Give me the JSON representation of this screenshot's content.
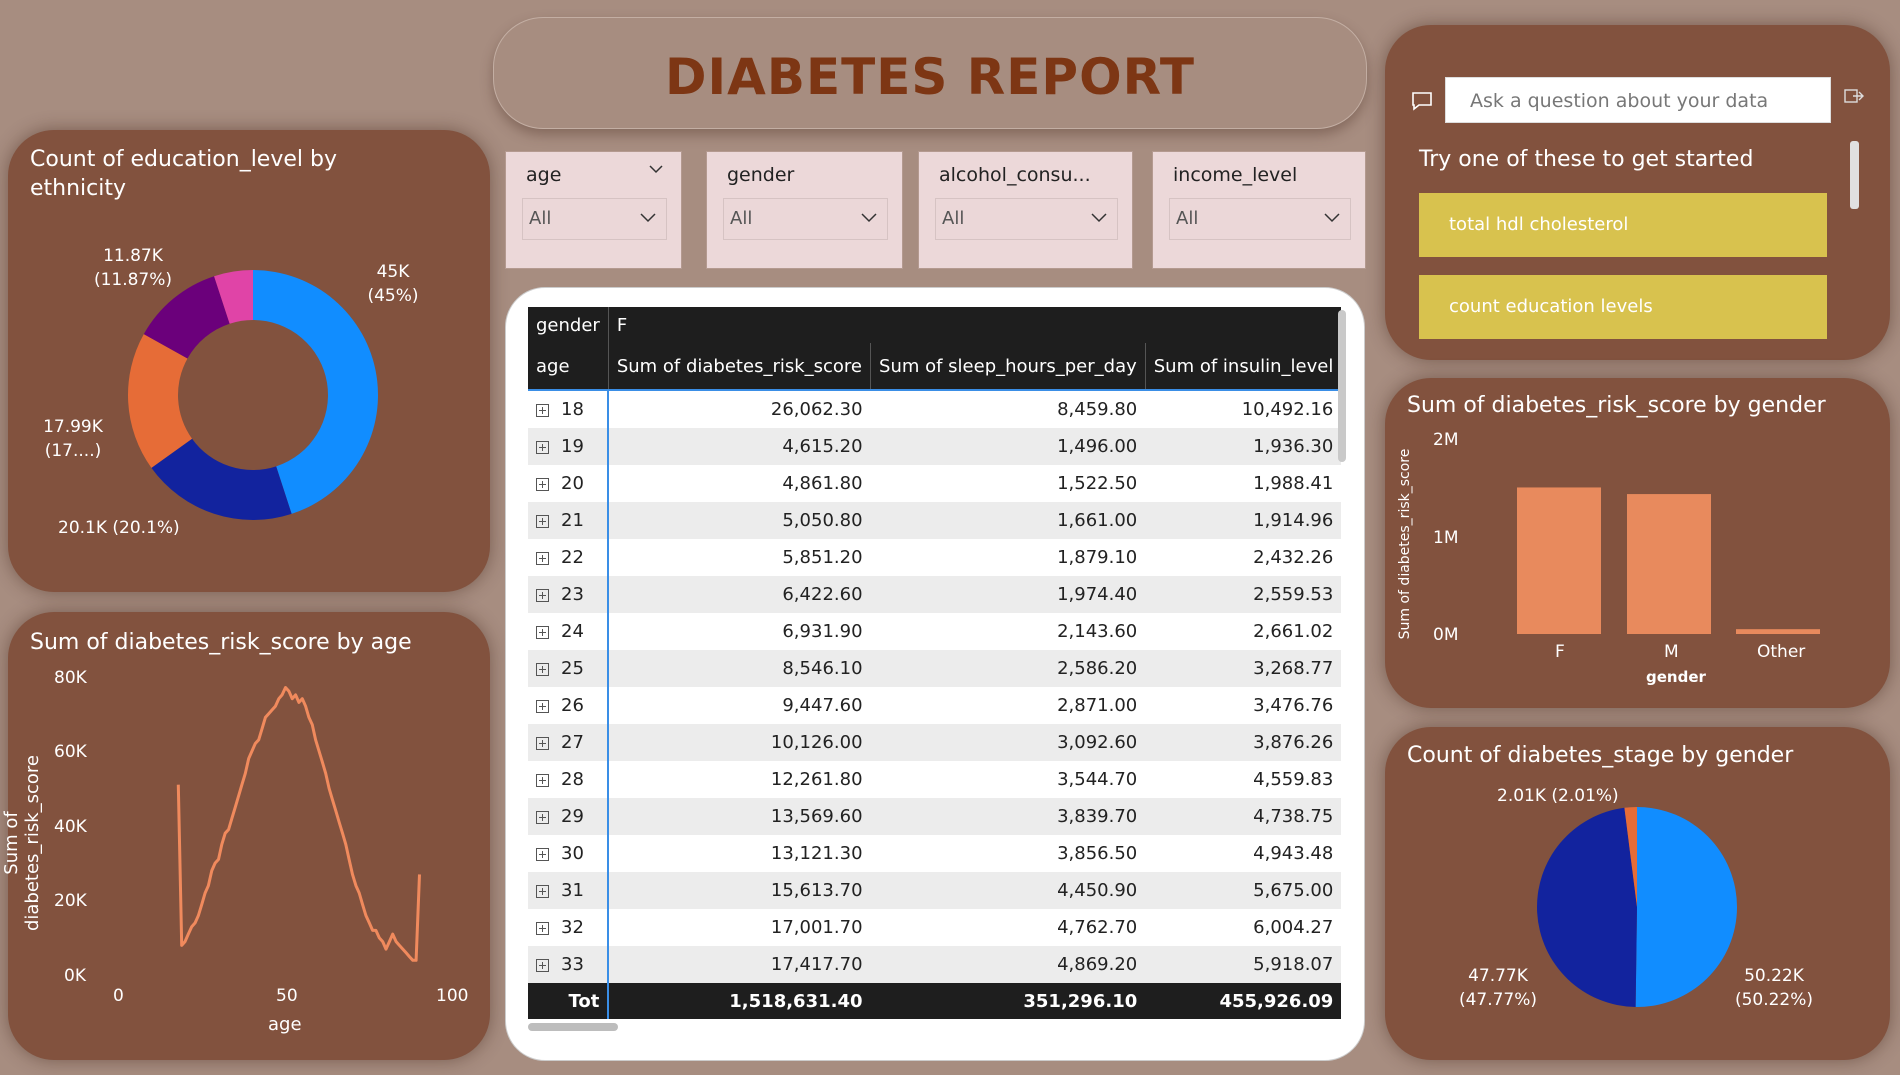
{
  "header": {
    "title": "DIABETES REPORT"
  },
  "slicers": [
    {
      "title": "age",
      "value": "All"
    },
    {
      "title": "gender",
      "value": "All"
    },
    {
      "title": "alcohol_consu...",
      "value": "All"
    },
    {
      "title": "income_level",
      "value": "All"
    }
  ],
  "donut": {
    "title": "Count of education_level by ethnicity",
    "labels": [
      "45K (45%)",
      "20.1K (20.1%)",
      "17.99K (17....)",
      "11.87K (11.87%)"
    ],
    "label_lines": {
      "a1": "45K",
      "a2": "(45%)",
      "b1": "20.1K (20.1%)",
      "c1": "17.99K",
      "c2": "(17....)",
      "d1": "11.87K",
      "d2": "(11.87%)"
    }
  },
  "line": {
    "title": "Sum of diabetes_risk_score by age",
    "ylabel": "Sum of diabetes_risk_score",
    "xlabel": "age",
    "yticks": [
      "80K",
      "60K",
      "40K",
      "20K",
      "0K"
    ],
    "xticks": [
      "0",
      "50",
      "100"
    ]
  },
  "qa": {
    "placeholder": "Ask a question about your data",
    "prompt": "Try one of these to get started",
    "suggestions": [
      "total hdl cholesterol",
      "count education levels"
    ]
  },
  "bar": {
    "title": "Sum of diabetes_risk_score by gender",
    "ylabel": "Sum of diabetes_risk_score",
    "xlabel": "gender",
    "yticks": [
      "2M",
      "1M",
      "0M"
    ],
    "categories": [
      "F",
      "M",
      "Other"
    ]
  },
  "pie": {
    "title": "Count of diabetes_stage by gender",
    "label_top": "2.01K (2.01%)",
    "label_left1": "47.77K",
    "label_left2": "(47.77%)",
    "label_right1": "50.22K",
    "label_right2": "(50.22%)"
  },
  "table": {
    "header_gender": "gender",
    "header_gender_val": "F",
    "columns": [
      "age",
      "Sum of diabetes_risk_score",
      "Sum of sleep_hours_per_day",
      "Sum of insulin_level"
    ],
    "rows": [
      [
        "18",
        "26,062.30",
        "8,459.80",
        "10,492.16"
      ],
      [
        "19",
        "4,615.20",
        "1,496.00",
        "1,936.30"
      ],
      [
        "20",
        "4,861.80",
        "1,522.50",
        "1,988.41"
      ],
      [
        "21",
        "5,050.80",
        "1,661.00",
        "1,914.96"
      ],
      [
        "22",
        "5,851.20",
        "1,879.10",
        "2,432.26"
      ],
      [
        "23",
        "6,422.60",
        "1,974.40",
        "2,559.53"
      ],
      [
        "24",
        "6,931.90",
        "2,143.60",
        "2,661.02"
      ],
      [
        "25",
        "8,546.10",
        "2,586.20",
        "3,268.77"
      ],
      [
        "26",
        "9,447.60",
        "2,871.00",
        "3,476.76"
      ],
      [
        "27",
        "10,126.00",
        "3,092.60",
        "3,876.26"
      ],
      [
        "28",
        "12,261.80",
        "3,544.70",
        "4,559.83"
      ],
      [
        "29",
        "13,569.60",
        "3,839.70",
        "4,738.75"
      ],
      [
        "30",
        "13,121.30",
        "3,856.50",
        "4,943.48"
      ],
      [
        "31",
        "15,613.70",
        "4,450.90",
        "5,675.00"
      ],
      [
        "32",
        "17,001.70",
        "4,762.70",
        "6,004.27"
      ],
      [
        "33",
        "17,417.70",
        "4,869.20",
        "5,918.07"
      ]
    ],
    "total": [
      "Tot",
      "1,518,631.40",
      "351,296.10",
      "455,926.09"
    ]
  },
  "chart_data": [
    {
      "type": "pie",
      "title": "Count of education_level by ethnicity",
      "values": [
        45000,
        20100,
        17990,
        11870,
        5040
      ],
      "colors": [
        "#118dff",
        "#12239e",
        "#e66c37",
        "#6b007b",
        "#e044a7"
      ]
    },
    {
      "type": "line",
      "title": "Sum of diabetes_risk_score by age",
      "xlabel": "age",
      "ylabel": "Sum of diabetes_risk_score",
      "xlim": [
        0,
        100
      ],
      "ylim": [
        0,
        80000
      ],
      "x": [
        18,
        19,
        20,
        21,
        22,
        23,
        24,
        25,
        26,
        27,
        28,
        29,
        30,
        31,
        32,
        33,
        34,
        35,
        36,
        37,
        38,
        39,
        40,
        41,
        42,
        43,
        44,
        45,
        46,
        47,
        48,
        49,
        50,
        51,
        52,
        53,
        54,
        55,
        56,
        57,
        58,
        59,
        60,
        61,
        62,
        63,
        64,
        65,
        66,
        67,
        68,
        69,
        70,
        71,
        72,
        73,
        74,
        75,
        76,
        77,
        78,
        79,
        80,
        81,
        82,
        83,
        84,
        85,
        86,
        87,
        88,
        89,
        90
      ],
      "y": [
        52000,
        9000,
        10000,
        12000,
        14000,
        15000,
        17000,
        20000,
        23000,
        25000,
        29000,
        31000,
        32000,
        36000,
        39000,
        40000,
        43000,
        46000,
        49000,
        52000,
        55000,
        59000,
        61000,
        63000,
        64000,
        67000,
        70000,
        71000,
        72000,
        73000,
        75000,
        76000,
        78000,
        77000,
        75000,
        76000,
        74000,
        75000,
        73000,
        70000,
        68000,
        64000,
        61000,
        58000,
        55000,
        51000,
        48000,
        45000,
        42000,
        39000,
        36000,
        32000,
        28000,
        25000,
        23000,
        20000,
        17000,
        15000,
        13000,
        13000,
        11000,
        10000,
        8000,
        10000,
        12000,
        10000,
        9000,
        8000,
        7000,
        6000,
        5000,
        5000,
        28000
      ],
      "color": "#f08a5d"
    },
    {
      "type": "bar",
      "title": "Sum of diabetes_risk_score by gender",
      "categories": [
        "F",
        "M",
        "Other"
      ],
      "values": [
        1518631.4,
        1450000,
        50000
      ],
      "ylim": [
        0,
        2000000
      ],
      "xlabel": "gender",
      "ylabel": "Sum of diabetes_risk_score",
      "color": "#e88a5d"
    },
    {
      "type": "pie",
      "title": "Count of diabetes_stage by gender",
      "values": [
        50220,
        47770,
        2010
      ],
      "colors": [
        "#118dff",
        "#12239e",
        "#e66c37"
      ]
    }
  ]
}
